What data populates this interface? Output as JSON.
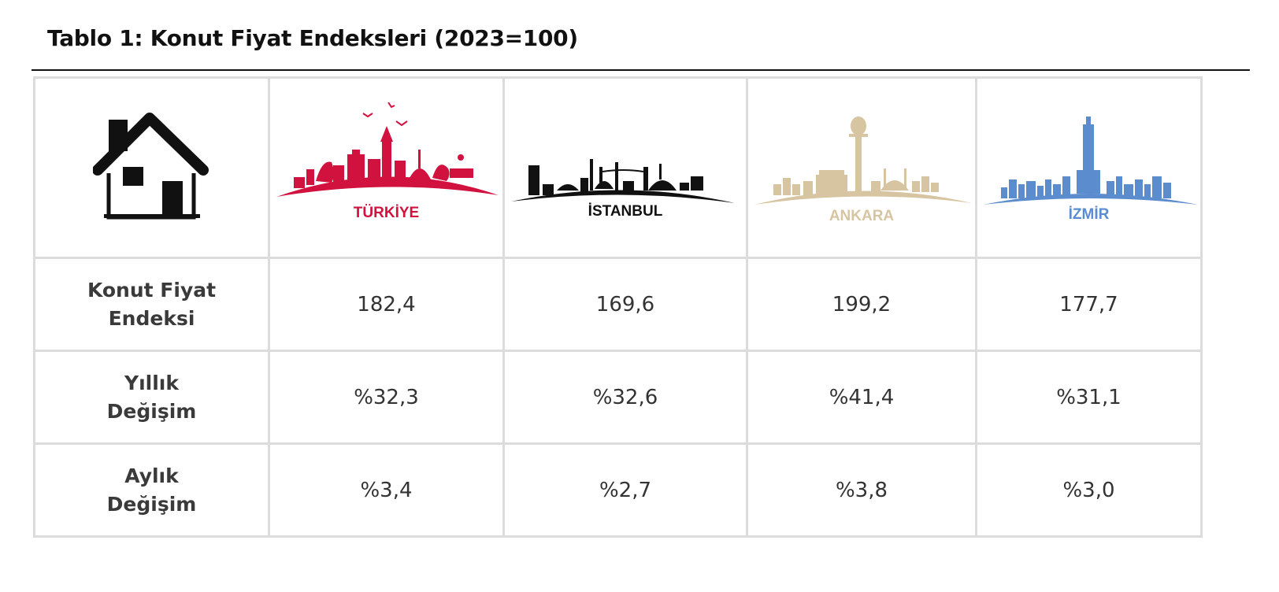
{
  "title": "Tablo 1: Konut Fiyat Endeksleri (2023=100)",
  "header_icon": "house-icon",
  "cities": [
    {
      "key": "turkiye",
      "name": "TÜRKİYE",
      "color": "#d1123f",
      "skyline_icon": "turkiye-skyline-icon"
    },
    {
      "key": "istanbul",
      "name": "İSTANBUL",
      "color": "#111111",
      "skyline_icon": "istanbul-skyline-icon"
    },
    {
      "key": "ankara",
      "name": "ANKARA",
      "color": "#d7c4a1",
      "skyline_icon": "ankara-skyline-icon"
    },
    {
      "key": "izmir",
      "name": "İZMİR",
      "color": "#5b8ccd",
      "skyline_icon": "izmir-skyline-icon"
    }
  ],
  "rows": [
    {
      "label": "Konut Fiyat\nEndeksi",
      "values": [
        "182,4",
        "169,6",
        "199,2",
        "177,7"
      ]
    },
    {
      "label": "Yıllık\nDeğişim",
      "values": [
        "%32,3",
        "%32,6",
        "%41,4",
        "%31,1"
      ]
    },
    {
      "label": "Aylık\nDeğişim",
      "values": [
        "%3,4",
        "%2,7",
        "%3,8",
        "%3,0"
      ]
    }
  ]
}
